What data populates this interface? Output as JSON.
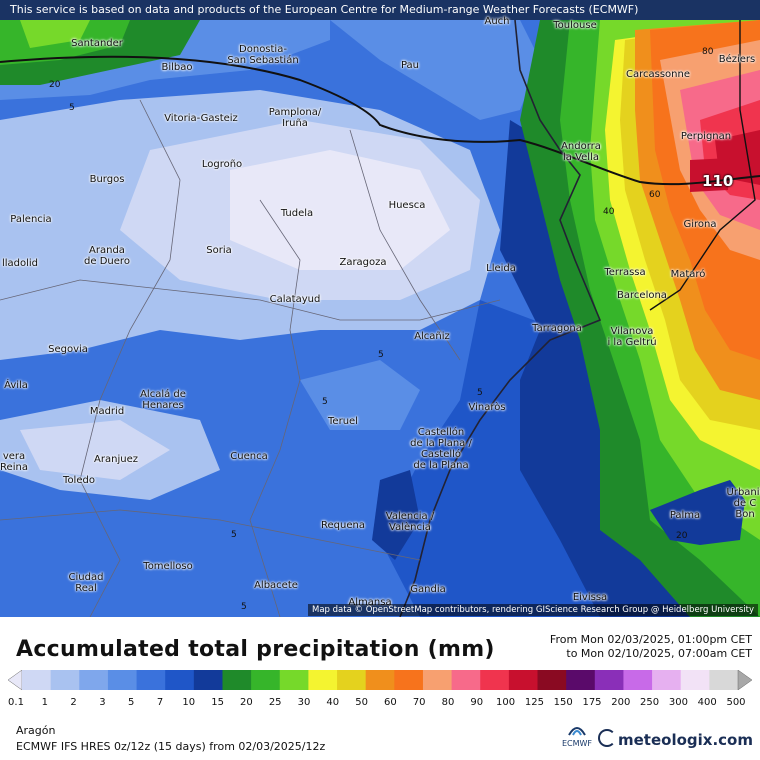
{
  "attribution_top": "This service is based on data and products of the European Centre for Medium-range Weather Forecasts (ECMWF)",
  "attribution_bottom": "Map data © OpenStreetMap contributors, rendering GIScience Research Group @ Heidelberg University",
  "cities": [
    {
      "name": "Santander"
    },
    {
      "name": "Bilbao"
    },
    {
      "name": "Donostia-\nSan Sebastián"
    },
    {
      "name": "Auch"
    },
    {
      "name": "Toulouse"
    },
    {
      "name": "Pau"
    },
    {
      "name": "Carcassonne"
    },
    {
      "name": "Béziers"
    },
    {
      "name": "Vitoria-Gasteiz"
    },
    {
      "name": "Pamplona/\nIruña"
    },
    {
      "name": "Perpignan"
    },
    {
      "name": "Andorra\nla Vella"
    },
    {
      "name": "Logroño"
    },
    {
      "name": "Burgos"
    },
    {
      "name": "Tudela"
    },
    {
      "name": "Huesca"
    },
    {
      "name": "Girona"
    },
    {
      "name": "Palencia"
    },
    {
      "name": "Aranda\nde Duero"
    },
    {
      "name": "Soria"
    },
    {
      "name": "Zaragoza"
    },
    {
      "name": "Lleida"
    },
    {
      "name": "Terrassa"
    },
    {
      "name": "Mataró"
    },
    {
      "name": "lladolid"
    },
    {
      "name": "Barcelona"
    },
    {
      "name": "Calatayud"
    },
    {
      "name": "Tarragona"
    },
    {
      "name": "Vilanova\ni la Geltrú"
    },
    {
      "name": "Alcañiz"
    },
    {
      "name": "Segovia"
    },
    {
      "name": "Ávila"
    },
    {
      "name": "Alcalá de\nHenares"
    },
    {
      "name": "Madrid"
    },
    {
      "name": "Vinaròs"
    },
    {
      "name": "Teruel"
    },
    {
      "name": "Castellón\nde la Plana /\nCastelló\nde la Plana"
    },
    {
      "name": "vera\nReina"
    },
    {
      "name": "Aranjuez"
    },
    {
      "name": "Cuenca"
    },
    {
      "name": "Toledo"
    },
    {
      "name": "Palma"
    },
    {
      "name": "Urbanit\nde C\nBon"
    },
    {
      "name": "Valencia /\nValència"
    },
    {
      "name": "Requena"
    },
    {
      "name": "Ciudad\nReal"
    },
    {
      "name": "Tomelloso"
    },
    {
      "name": "Albacete"
    },
    {
      "name": "Gandia"
    },
    {
      "name": "Eivissa"
    },
    {
      "name": "Almansa"
    }
  ],
  "contour_labels": [
    "20",
    "5",
    "80",
    "60",
    "40",
    "5",
    "5",
    "5",
    "5",
    "5",
    "20"
  ],
  "max_value_label": "110",
  "legend": {
    "title": "Accumulated total precipitation (mm)",
    "period_from": "From Mon 02/03/2025, 01:00pm CET",
    "period_to": "to Mon 02/10/2025, 07:00am CET",
    "ticks": [
      "0.1",
      "1",
      "2",
      "3",
      "5",
      "7",
      "10",
      "15",
      "20",
      "25",
      "30",
      "40",
      "50",
      "60",
      "70",
      "80",
      "90",
      "100",
      "125",
      "150",
      "175",
      "200",
      "250",
      "300",
      "400",
      "500"
    ],
    "colors": [
      "#e8e8f8",
      "#cfd8f4",
      "#a9c2f0",
      "#7fa7ec",
      "#5a8ee6",
      "#3a72dc",
      "#1f56c8",
      "#123a9a",
      "#1f8a2a",
      "#36b52a",
      "#76d92a",
      "#f4f430",
      "#e4d21e",
      "#f08f1c",
      "#f7731c",
      "#f7a070",
      "#f76a8a",
      "#f0344e",
      "#c8102e",
      "#8a0a22",
      "#5a0a6a",
      "#8a2fb8",
      "#c86ae8",
      "#e6b0f0",
      "#f2e2f6",
      "#d8d8d8",
      "#a8a8a8"
    ],
    "region": "Aragón",
    "model_line": "ECMWF IFS HRES 0z/12z (15 days) from 02/03/2025/12z",
    "ecmwf_label": "ECMWF",
    "brand": "meteologix.com"
  }
}
